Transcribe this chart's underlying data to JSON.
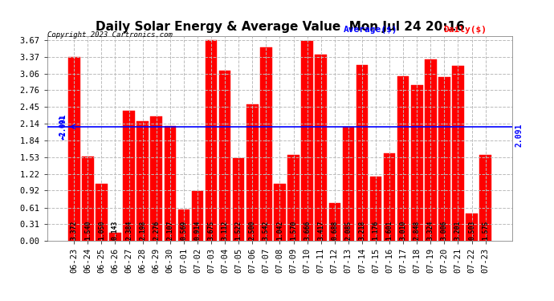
{
  "title": "Daily Solar Energy & Average Value  Mon Jul 24 20:16",
  "copyright": "Copyright 2023 Cartronics.com",
  "legend_average": "Average($)",
  "legend_daily": "Daily($)",
  "average_value": 2.091,
  "categories": [
    "06-23",
    "06-24",
    "06-25",
    "06-26",
    "06-27",
    "06-28",
    "06-29",
    "06-30",
    "07-01",
    "07-02",
    "07-03",
    "07-04",
    "07-05",
    "07-06",
    "07-07",
    "07-08",
    "07-09",
    "07-10",
    "07-11",
    "07-12",
    "07-13",
    "07-14",
    "07-15",
    "07-16",
    "07-17",
    "07-18",
    "07-19",
    "07-20",
    "07-21",
    "07-22",
    "07-23"
  ],
  "values": [
    3.372,
    1.54,
    1.05,
    0.143,
    2.384,
    2.198,
    2.276,
    2.107,
    0.569,
    0.914,
    3.675,
    3.112,
    1.522,
    2.5,
    3.542,
    1.042,
    1.57,
    3.666,
    3.417,
    0.688,
    2.085,
    3.218,
    1.176,
    1.601,
    3.01,
    2.848,
    3.324,
    3.006,
    3.201,
    0.503,
    1.575
  ],
  "bar_color": "#ff0000",
  "background_color": "#ffffff",
  "grid_color": "#bbbbbb",
  "avg_line_color": "#0000ff",
  "title_color": "#000000",
  "copyright_color": "#000000",
  "yticks": [
    0.0,
    0.31,
    0.61,
    0.92,
    1.22,
    1.53,
    1.84,
    2.14,
    2.45,
    2.76,
    3.06,
    3.37,
    3.67
  ],
  "ylim": [
    0.0,
    3.75
  ],
  "title_fontsize": 11,
  "bar_label_fontsize": 5.8,
  "tick_fontsize": 7.5,
  "avg_label": "2.091",
  "legend_avg_color": "#0000ff",
  "legend_daily_color": "#ff0000"
}
